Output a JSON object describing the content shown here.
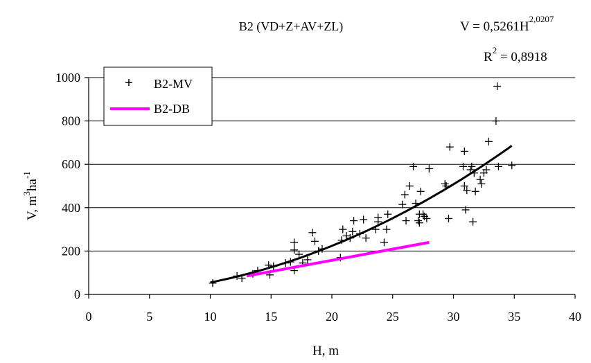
{
  "chart_data": {
    "type": "scatter",
    "title": "B2 (VD+Z+AV+ZL)",
    "equation": {
      "prefix": "V = 0,5261H",
      "exponent": "2,0207"
    },
    "r_squared": {
      "prefix": "R",
      "exponent": "2",
      "suffix": " = 0,8918"
    },
    "xlabel": "H, m",
    "ylabel": {
      "base": "V, m",
      "sup1": "3",
      "mid": "ha",
      "sup2": "-1"
    },
    "xlim": [
      0,
      40
    ],
    "ylim": [
      0,
      1000
    ],
    "xticks": [
      "0",
      "5",
      "10",
      "15",
      "20",
      "25",
      "30",
      "35",
      "40"
    ],
    "yticks": [
      "0",
      "200",
      "400",
      "600",
      "800",
      "1000"
    ],
    "grid": "horizontal",
    "legend": {
      "placement": "top-left",
      "entries": [
        "B2-MV",
        "B2-DB"
      ]
    },
    "series": [
      {
        "name": "B2-MV",
        "kind": "scatter",
        "marker": "+",
        "color": "#000000",
        "points": [
          [
            10.2,
            52
          ],
          [
            12.2,
            85
          ],
          [
            12.6,
            75
          ],
          [
            13.5,
            95
          ],
          [
            13.9,
            110
          ],
          [
            14.8,
            135
          ],
          [
            14.9,
            90
          ],
          [
            15.2,
            130
          ],
          [
            16.2,
            145
          ],
          [
            16.6,
            150
          ],
          [
            16.9,
            240
          ],
          [
            16.9,
            205
          ],
          [
            16.9,
            110
          ],
          [
            17.3,
            185
          ],
          [
            17.6,
            145
          ],
          [
            18.0,
            160
          ],
          [
            18.4,
            285
          ],
          [
            18.6,
            245
          ],
          [
            18.9,
            200
          ],
          [
            19.2,
            210
          ],
          [
            20.7,
            170
          ],
          [
            20.8,
            250
          ],
          [
            20.9,
            300
          ],
          [
            21.2,
            270
          ],
          [
            21.5,
            260
          ],
          [
            21.7,
            290
          ],
          [
            21.8,
            340
          ],
          [
            22.3,
            280
          ],
          [
            22.6,
            345
          ],
          [
            22.8,
            260
          ],
          [
            23.6,
            300
          ],
          [
            23.8,
            335
          ],
          [
            23.8,
            355
          ],
          [
            24.3,
            240
          ],
          [
            24.5,
            300
          ],
          [
            24.6,
            370
          ],
          [
            25.8,
            415
          ],
          [
            26.0,
            460
          ],
          [
            26.1,
            340
          ],
          [
            26.4,
            500
          ],
          [
            26.7,
            590
          ],
          [
            26.9,
            420
          ],
          [
            27.1,
            340
          ],
          [
            27.2,
            330
          ],
          [
            27.2,
            370
          ],
          [
            27.3,
            475
          ],
          [
            27.5,
            370
          ],
          [
            27.6,
            360
          ],
          [
            27.8,
            350
          ],
          [
            28.0,
            580
          ],
          [
            29.3,
            510
          ],
          [
            29.4,
            500
          ],
          [
            29.6,
            350
          ],
          [
            29.7,
            680
          ],
          [
            30.8,
            590
          ],
          [
            30.9,
            500
          ],
          [
            30.9,
            660
          ],
          [
            31.0,
            390
          ],
          [
            31.1,
            480
          ],
          [
            31.4,
            575
          ],
          [
            31.5,
            590
          ],
          [
            31.6,
            335
          ],
          [
            31.7,
            560
          ],
          [
            31.8,
            475
          ],
          [
            32.2,
            530
          ],
          [
            32.3,
            510
          ],
          [
            32.5,
            560
          ],
          [
            32.7,
            575
          ],
          [
            32.9,
            705
          ],
          [
            33.5,
            800
          ],
          [
            33.6,
            960
          ],
          [
            33.7,
            590
          ],
          [
            34.8,
            595
          ]
        ]
      },
      {
        "name": "B2-DB",
        "kind": "line",
        "color": "#ff00ff",
        "points": [
          [
            13,
            85
          ],
          [
            28,
            240
          ]
        ]
      },
      {
        "name": "trend",
        "kind": "line",
        "color": "#000000",
        "formula": {
          "a": 0.5261,
          "b": 2.0207,
          "x_from": 10,
          "x_to": 34.8
        }
      }
    ]
  }
}
